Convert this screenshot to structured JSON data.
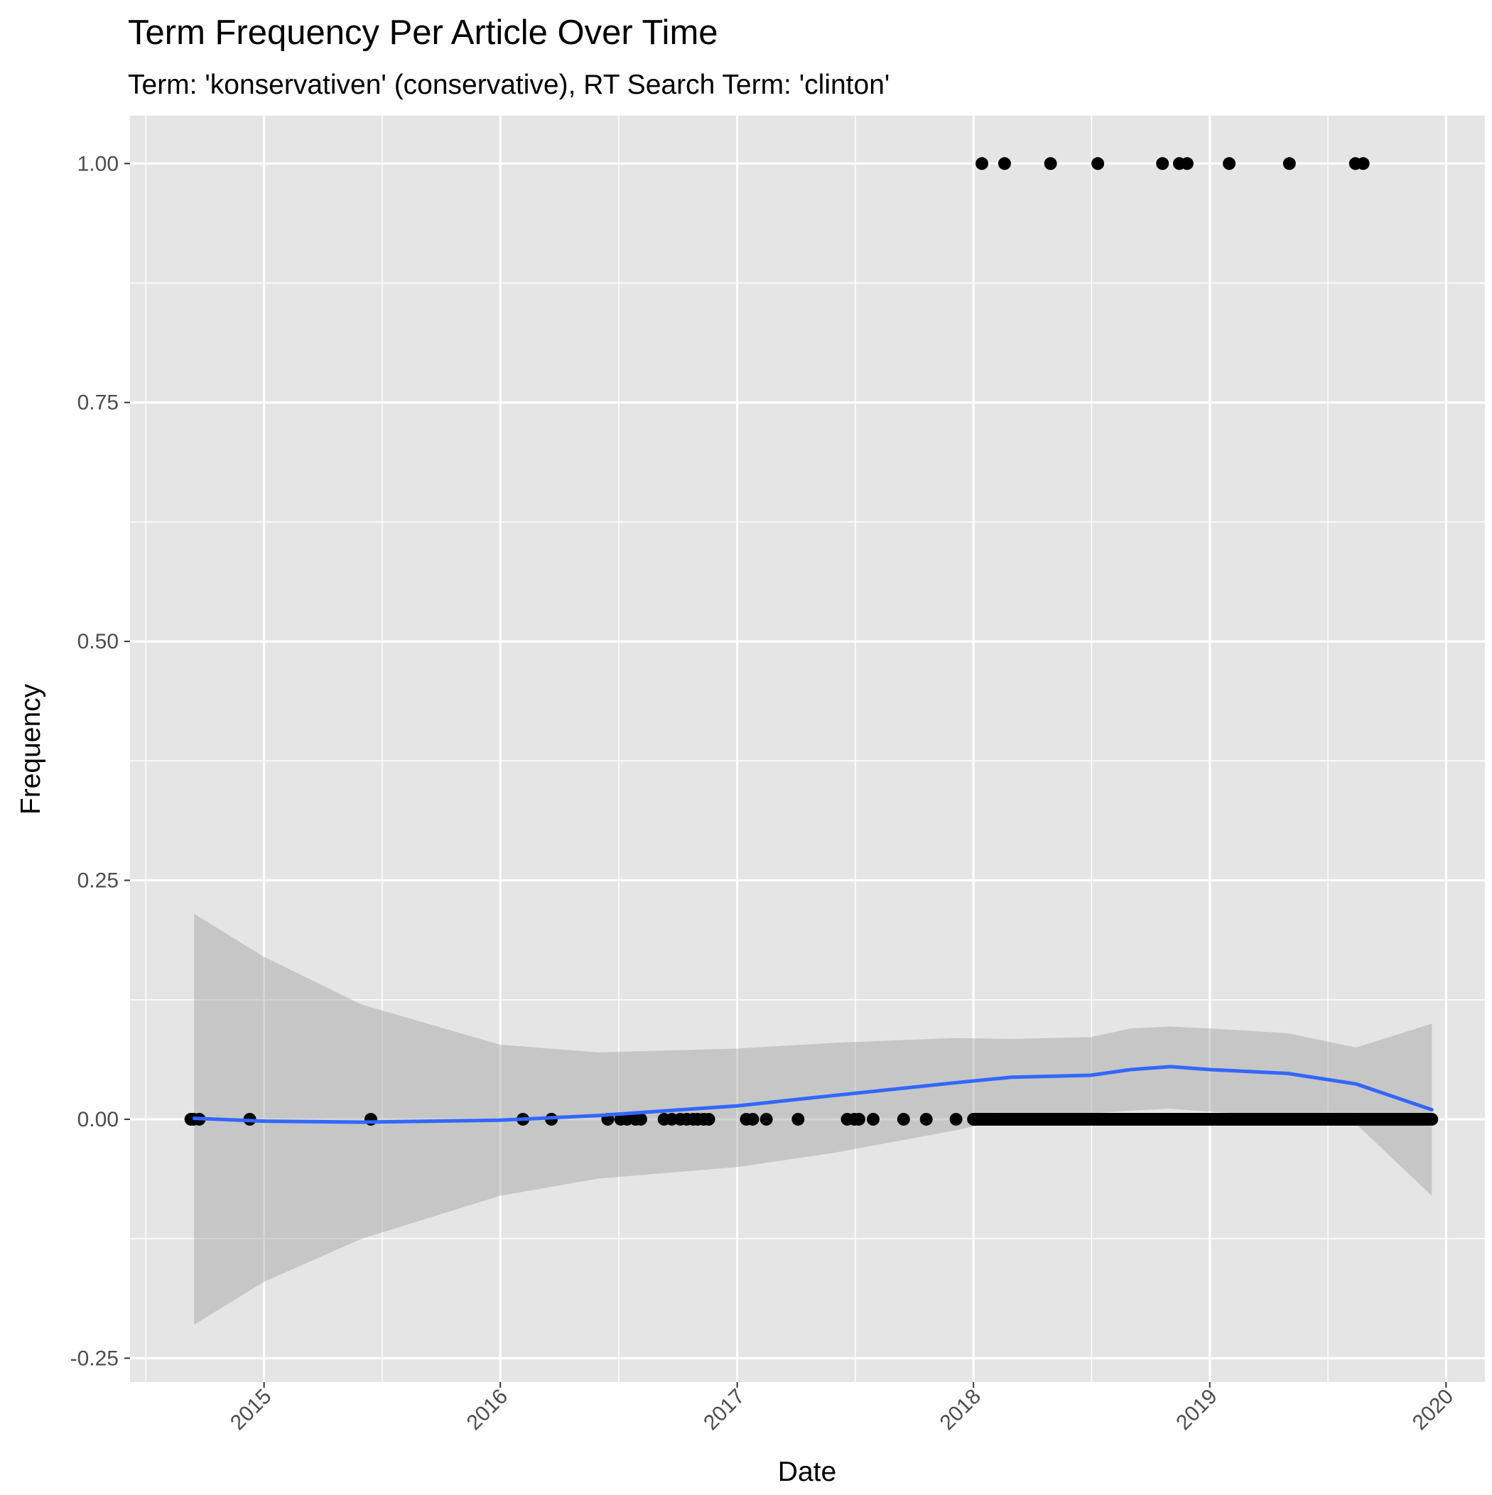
{
  "chart_data": {
    "type": "scatter",
    "title": "Term Frequency Per Article Over Time",
    "subtitle": "Term: 'konservativen' (conservative), RT Search Term: 'clinton'",
    "xlabel": "Date",
    "ylabel": "Frequency",
    "x_axis": {
      "scale": "date",
      "range": [
        "2014-06-08",
        "2020-03-01"
      ],
      "ticks": [
        "2015-01-01",
        "2016-01-01",
        "2017-01-01",
        "2018-01-01",
        "2019-01-01",
        "2020-01-01"
      ],
      "tick_labels": [
        "2015",
        "2016",
        "2017",
        "2018",
        "2019",
        "2020"
      ],
      "tick_label_rotation": -45
    },
    "y_axis": {
      "range": [
        -0.275,
        1.05
      ],
      "ticks": [
        -0.25,
        0,
        0.25,
        0.5,
        0.75,
        1.0
      ],
      "tick_labels": [
        "-0.25",
        "0.00",
        "0.25",
        "0.50",
        "0.75",
        "1.00"
      ]
    },
    "grid": true,
    "legend": "none",
    "colors": {
      "panel_background": "#e5e5e5",
      "grid_line": "#ffffff",
      "points": "#000000",
      "smooth_line": "#3366ff",
      "confidence_band": "#999999"
    },
    "points_at_one": [
      "2018-01-14",
      "2018-02-18",
      "2018-04-30",
      "2018-07-12",
      "2018-10-20",
      "2018-11-15",
      "2018-11-27",
      "2019-01-31",
      "2019-05-04",
      "2019-08-14",
      "2019-08-26"
    ],
    "points_at_zero_sparse": [
      "2014-09-10",
      "2014-09-14",
      "2014-09-23",
      "2014-12-10",
      "2015-06-15",
      "2016-02-05",
      "2016-03-20",
      "2016-06-15",
      "2016-07-05",
      "2016-07-15",
      "2016-07-28",
      "2016-08-05",
      "2016-09-10",
      "2016-09-22",
      "2016-10-05",
      "2016-10-15",
      "2016-10-25",
      "2016-11-01",
      "2016-11-10",
      "2016-11-18",
      "2017-01-15",
      "2017-01-25",
      "2017-02-15",
      "2017-04-05",
      "2017-06-20",
      "2017-07-01",
      "2017-07-08",
      "2017-07-30",
      "2017-09-15",
      "2017-10-20",
      "2017-12-05"
    ],
    "dense_zero_range": [
      "2018-01-01",
      "2019-12-10"
    ],
    "smooth": {
      "method": "loess",
      "x": [
        "2014-09-15",
        "2015-01-01",
        "2015-06-01",
        "2016-01-01",
        "2016-06-01",
        "2017-01-01",
        "2017-06-01",
        "2017-12-01",
        "2018-03-01",
        "2018-07-01",
        "2018-09-01",
        "2018-11-01",
        "2019-01-01",
        "2019-05-01",
        "2019-08-15",
        "2019-12-10"
      ],
      "fit": [
        0.001,
        -0.002,
        -0.003,
        -0.001,
        0.004,
        0.014,
        0.025,
        0.038,
        0.044,
        0.046,
        0.052,
        0.055,
        0.052,
        0.048,
        0.037,
        0.01
      ],
      "lower": [
        -0.215,
        -0.17,
        -0.125,
        -0.08,
        -0.062,
        -0.05,
        -0.035,
        -0.012,
        0.001,
        0.006,
        0.009,
        0.011,
        0.008,
        0.003,
        -0.005,
        -0.08
      ],
      "upper": [
        0.215,
        0.17,
        0.12,
        0.078,
        0.07,
        0.074,
        0.08,
        0.085,
        0.084,
        0.086,
        0.095,
        0.097,
        0.095,
        0.09,
        0.075,
        0.1
      ]
    }
  }
}
